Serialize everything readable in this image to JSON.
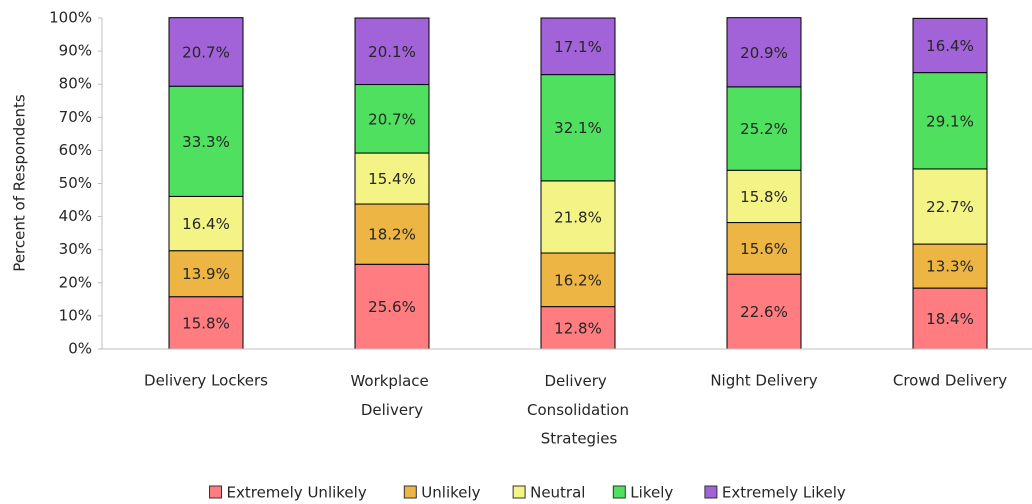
{
  "chart_data": {
    "type": "bar",
    "stacked": true,
    "x_label": "Strategies",
    "y_label": "Percent of Respondents",
    "categories": [
      "Delivery Lockers",
      "Workplace Delivery",
      "Delivery Consolidation",
      "Night Delivery",
      "Crowd Delivery"
    ],
    "series": [
      {
        "name": "Extremely Unlikely",
        "color": "#ff7c80",
        "values": [
          15.8,
          25.6,
          12.8,
          22.6,
          18.4
        ],
        "value_labels": [
          "15.8%",
          "25.6%",
          "12.8%",
          "22.6%",
          "18.4%"
        ]
      },
      {
        "name": "Unlikely",
        "color": "#ecb544",
        "values": [
          13.9,
          18.2,
          16.2,
          15.6,
          13.3
        ],
        "value_labels": [
          "13.9%",
          "18.2%",
          "16.2%",
          "15.6%",
          "13.3%"
        ]
      },
      {
        "name": "Neutral",
        "color": "#f4f486",
        "values": [
          16.4,
          15.4,
          21.8,
          15.8,
          22.7
        ],
        "value_labels": [
          "16.4%",
          "15.4%",
          "21.8%",
          "15.8%",
          "22.7%"
        ]
      },
      {
        "name": "Likely",
        "color": "#4fe060",
        "values": [
          33.3,
          20.7,
          32.1,
          25.2,
          29.1
        ],
        "value_labels": [
          "33.3%",
          "20.7%",
          "32.1%",
          "25.2%",
          "29.1%"
        ]
      },
      {
        "name": "Extremely Likely",
        "color": "#a263d8",
        "values": [
          20.7,
          20.1,
          17.1,
          20.9,
          16.4
        ],
        "value_labels": [
          "20.7%",
          "20.1%",
          "17.1%",
          "20.9%",
          "16.4%"
        ]
      }
    ],
    "ylim": [
      0,
      100
    ],
    "yticks": [
      {
        "value": 0,
        "label": "0%"
      },
      {
        "value": 10,
        "label": "10%"
      },
      {
        "value": 20,
        "label": "20%"
      },
      {
        "value": 30,
        "label": "30%"
      },
      {
        "value": 40,
        "label": "40%"
      },
      {
        "value": 50,
        "label": "50%"
      },
      {
        "value": 60,
        "label": "60%"
      },
      {
        "value": 70,
        "label": "70%"
      },
      {
        "value": 80,
        "label": "80%"
      },
      {
        "value": 90,
        "label": "90%"
      },
      {
        "value": 100,
        "label": "100%"
      }
    ],
    "legend": "bottom"
  }
}
